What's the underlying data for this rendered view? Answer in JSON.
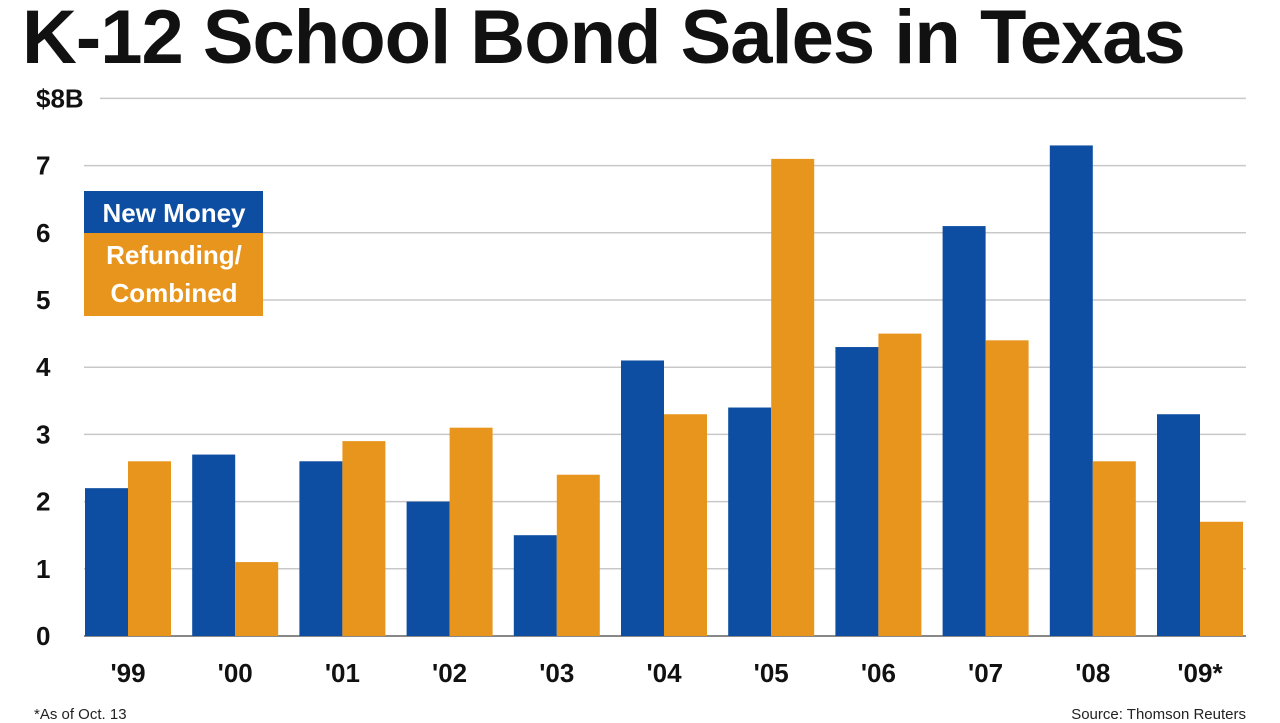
{
  "chart_data": {
    "type": "bar",
    "title": "K-12 School Bond Sales in Texas",
    "categories": [
      "'99",
      "'00",
      "'01",
      "'02",
      "'03",
      "'04",
      "'05",
      "'06",
      "'07",
      "'08",
      "'09*"
    ],
    "series": [
      {
        "name": "New Money",
        "color": "#0d4ea2",
        "values": [
          2.2,
          2.7,
          2.6,
          2.0,
          1.5,
          4.1,
          3.4,
          4.3,
          6.1,
          7.3,
          3.3
        ]
      },
      {
        "name": "Refunding/ Combined",
        "color": "#e8951e",
        "values": [
          2.6,
          1.1,
          2.9,
          3.1,
          2.4,
          3.3,
          7.1,
          4.5,
          4.4,
          2.6,
          1.7
        ]
      }
    ],
    "y_ticks": [
      "0",
      "1",
      "2",
      "3",
      "4",
      "5",
      "6",
      "7",
      "$8B"
    ],
    "ylim": [
      0,
      8
    ],
    "grid": true,
    "legend_position": "top-left",
    "footnote": "*As of Oct. 13",
    "source": "Source: Thomson Reuters"
  }
}
